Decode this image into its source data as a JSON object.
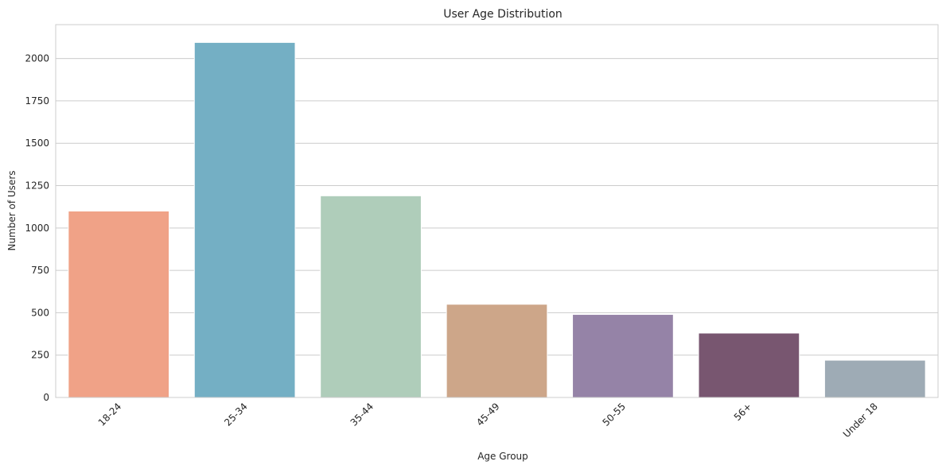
{
  "chart_data": {
    "type": "bar",
    "title": "User Age Distribution",
    "xlabel": "Age Group",
    "ylabel": "Number of Users",
    "categories": [
      "18-24",
      "25-34",
      "35-44",
      "45-49",
      "50-55",
      "56+",
      "Under 18"
    ],
    "values": [
      1100,
      2095,
      1190,
      550,
      490,
      380,
      220
    ],
    "colors": [
      "#f0a287",
      "#74afc4",
      "#afcdba",
      "#cda689",
      "#9583a7",
      "#785670",
      "#9eabb5"
    ],
    "ylim": [
      0,
      2200
    ],
    "yticks": [
      0,
      250,
      500,
      750,
      1000,
      1250,
      1500,
      1750,
      2000
    ],
    "grid": true,
    "xtick_rotation_deg": 45
  }
}
